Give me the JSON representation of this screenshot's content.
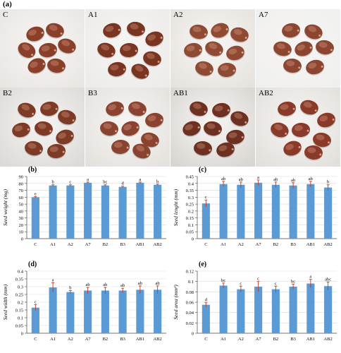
{
  "figure_label": "(a)",
  "photos": [
    {
      "label": "C"
    },
    {
      "label": "A1"
    },
    {
      "label": "A2"
    },
    {
      "label": "A7"
    },
    {
      "label": "B2"
    },
    {
      "label": "B3"
    },
    {
      "label": "AB1"
    },
    {
      "label": "AB2"
    }
  ],
  "colors": {
    "bar": "#5b9bd5",
    "error": "#c0392b",
    "grid": "#d9d9d9"
  },
  "chart_data": [
    {
      "panel": "(b)",
      "type": "bar",
      "categories": [
        "C",
        "A1",
        "A2",
        "A7",
        "B2",
        "B3",
        "AB1",
        "AB2"
      ],
      "values": [
        60,
        77,
        77,
        81,
        77,
        75,
        81,
        78
      ],
      "errors": [
        1,
        1,
        1,
        1,
        1,
        1,
        1,
        1
      ],
      "letters": [
        "e",
        "b",
        "c",
        "a",
        "bc",
        "d",
        "a",
        "b"
      ],
      "ylabel": "Seed weight (mg)",
      "ylim": [
        0,
        90
      ],
      "yticks": [
        "0",
        "10",
        "20",
        "30",
        "40",
        "50",
        "60",
        "70",
        "80",
        "90"
      ],
      "grid": true
    },
    {
      "panel": "(c)",
      "type": "bar",
      "categories": [
        "C",
        "A1",
        "A2",
        "A7",
        "B2",
        "B3",
        "AB1",
        "AB2"
      ],
      "values": [
        0.255,
        0.395,
        0.39,
        0.405,
        0.39,
        0.385,
        0.395,
        0.37
      ],
      "errors": [
        0.025,
        0.02,
        0.02,
        0.02,
        0.02,
        0.02,
        0.02,
        0.02
      ],
      "letters": [
        "c",
        "ab",
        "ab",
        "a",
        "ab",
        "ab",
        "ab",
        "b"
      ],
      "ylabel": "Seed lenght (mm)",
      "ylim": [
        0,
        0.45
      ],
      "yticks": [
        "0",
        "0.05",
        "0.1",
        "0.15",
        "0.2",
        "0.25",
        "0.3",
        "0.35",
        "0.4",
        "0.45"
      ],
      "grid": true
    },
    {
      "panel": "(d)",
      "type": "bar",
      "categories": [
        "C",
        "A1",
        "A2",
        "A7",
        "B2",
        "B3",
        "AB1",
        "AB2"
      ],
      "values": [
        0.165,
        0.295,
        0.265,
        0.275,
        0.275,
        0.275,
        0.28,
        0.28
      ],
      "errors": [
        0.02,
        0.03,
        0.01,
        0.02,
        0.02,
        0.015,
        0.025,
        0.025
      ],
      "letters": [
        "c",
        "a",
        "b",
        "ab",
        "ab",
        "ab",
        "ab",
        "ab"
      ],
      "ylabel": "Seed width (mm)",
      "ylim": [
        0,
        0.4
      ],
      "yticks": [
        "0",
        "0.05",
        "0.1",
        "0.15",
        "0.2",
        "0.25",
        "0.3",
        "0.35",
        "0.4"
      ],
      "grid": true
    },
    {
      "panel": "(e)",
      "type": "bar",
      "categories": [
        "C",
        "A1",
        "A2",
        "A7",
        "B2",
        "B3",
        "AB1",
        "AB2"
      ],
      "values": [
        0.055,
        0.092,
        0.085,
        0.09,
        0.085,
        0.09,
        0.096,
        0.091
      ],
      "errors": [
        0.004,
        0.005,
        0.006,
        0.01,
        0.006,
        0.005,
        0.008,
        0.008
      ],
      "letters": [
        "d",
        "bc",
        "c",
        "c",
        "c",
        "bc",
        "a",
        "abc"
      ],
      "ylabel": "Seed area (mm²)",
      "ylim": [
        0,
        0.12
      ],
      "yticks": [
        "0",
        "0.02",
        "0.04",
        "0.06",
        "0.08",
        "0.1",
        "0.12"
      ],
      "grid": true
    }
  ]
}
